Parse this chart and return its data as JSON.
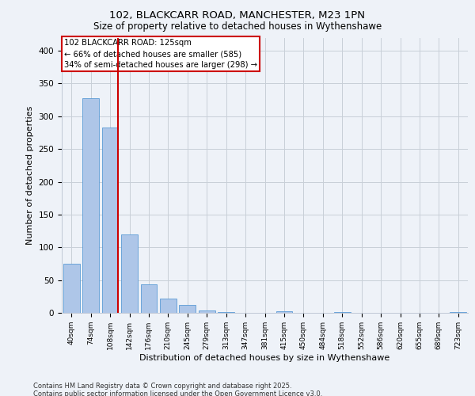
{
  "title_line1": "102, BLACKCARR ROAD, MANCHESTER, M23 1PN",
  "title_line2": "Size of property relative to detached houses in Wythenshawe",
  "xlabel": "Distribution of detached houses by size in Wythenshawe",
  "ylabel": "Number of detached properties",
  "categories": [
    "40sqm",
    "74sqm",
    "108sqm",
    "142sqm",
    "176sqm",
    "210sqm",
    "245sqm",
    "279sqm",
    "313sqm",
    "347sqm",
    "381sqm",
    "415sqm",
    "450sqm",
    "484sqm",
    "518sqm",
    "552sqm",
    "586sqm",
    "620sqm",
    "655sqm",
    "689sqm",
    "723sqm"
  ],
  "values": [
    75,
    328,
    283,
    120,
    43,
    22,
    12,
    4,
    1,
    0,
    0,
    3,
    0,
    0,
    1,
    0,
    0,
    0,
    0,
    0,
    1
  ],
  "bar_color": "#aec6e8",
  "bar_edge_color": "#5b9bd5",
  "highlight_line_index": 2,
  "highlight_color": "#cc0000",
  "annotation_title": "102 BLACKCARR ROAD: 125sqm",
  "annotation_line1": "← 66% of detached houses are smaller (585)",
  "annotation_line2": "34% of semi-detached houses are larger (298) →",
  "annotation_box_color": "#ffffff",
  "annotation_box_edge": "#cc0000",
  "ylim": [
    0,
    420
  ],
  "yticks": [
    0,
    50,
    100,
    150,
    200,
    250,
    300,
    350,
    400
  ],
  "background_color": "#eef2f8",
  "footer_line1": "Contains HM Land Registry data © Crown copyright and database right 2025.",
  "footer_line2": "Contains public sector information licensed under the Open Government Licence v3.0."
}
